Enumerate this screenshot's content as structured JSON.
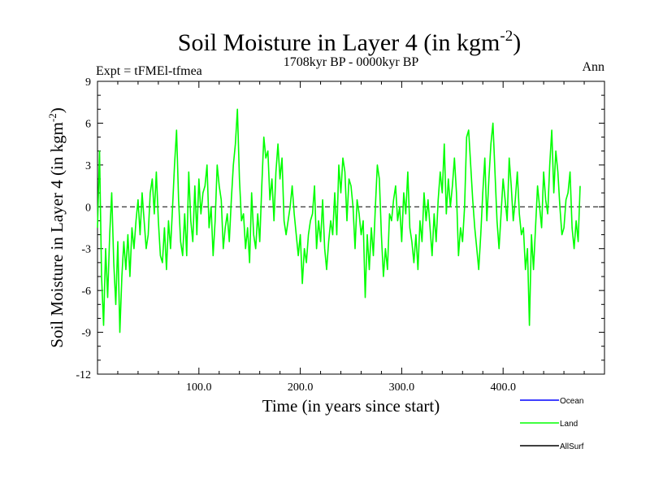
{
  "chart_data": {
    "type": "line",
    "title": "Soil Moisture in Layer 4 (in kgm",
    "title_sup": "-2",
    "title_close": ")",
    "subtitle": "1708kyr BP - 0000kyr BP",
    "left_label": "Expt = tFMEl-tfmea",
    "right_label": "Ann",
    "xlabel": "Time (in years since start)",
    "ylabel": "Soil Moisture in Layer 4 (in kgm",
    "ylabel_sup": "-2",
    "ylabel_close": ")",
    "xlim": [
      0,
      500
    ],
    "ylim": [
      -12,
      9
    ],
    "x_ticks": [
      100,
      200,
      300,
      400
    ],
    "x_tick_labels": [
      "100.0",
      "200.0",
      "300.0",
      "400.0"
    ],
    "y_ticks": [
      -12,
      -9,
      -6,
      -3,
      0,
      3,
      6,
      9
    ],
    "y_tick_labels": [
      "-12",
      "-9",
      "-6",
      "-3",
      "0",
      "3",
      "6",
      "9"
    ],
    "zero_line": 0,
    "legend": [
      {
        "name": "Ocean",
        "color": "#0000ff"
      },
      {
        "name": "Land",
        "color": "#00ff00"
      },
      {
        "name": "AllSurf",
        "color": "#000000"
      }
    ],
    "series": [
      {
        "name": "Land",
        "color": "#00ff00",
        "x_start": 0,
        "x_step": 2,
        "values": [
          -1.5,
          4.0,
          -5.0,
          -8.5,
          -3.0,
          -6.5,
          -2.0,
          1.0,
          -4.0,
          -7.0,
          -2.5,
          -9.0,
          -5.0,
          -2.5,
          -4.5,
          -2.0,
          -5.0,
          -1.5,
          -3.0,
          -1.0,
          0.5,
          -2.0,
          1.0,
          -1.0,
          -3.0,
          -2.0,
          1.0,
          2.0,
          -0.5,
          2.5,
          -1.0,
          -3.5,
          -4.0,
          -1.5,
          -4.5,
          -1.0,
          -3.0,
          0.0,
          3.0,
          5.5,
          0.5,
          -2.5,
          -3.5,
          -0.5,
          -3.5,
          2.5,
          -1.0,
          -2.5,
          1.5,
          -2.0,
          2.0,
          -0.5,
          1.0,
          1.5,
          3.0,
          -1.5,
          0.0,
          -3.5,
          -1.0,
          3.0,
          1.5,
          0.5,
          -3.0,
          -1.5,
          -0.5,
          -2.5,
          0.5,
          3.0,
          4.5,
          7.0,
          2.0,
          -1.0,
          -0.5,
          -3.0,
          -1.5,
          -4.0,
          1.0,
          -2.0,
          -3.0,
          -0.5,
          -2.5,
          1.5,
          5.0,
          3.5,
          4.0,
          0.5,
          2.0,
          -1.0,
          2.5,
          4.5,
          2.0,
          3.5,
          -1.0,
          -2.0,
          -1.0,
          0.0,
          1.5,
          -0.5,
          -2.0,
          -3.5,
          -2.0,
          -5.5,
          -3.0,
          -4.0,
          -2.0,
          -1.0,
          -0.5,
          1.5,
          -3.0,
          -1.0,
          -2.5,
          0.5,
          -3.0,
          -4.5,
          -2.5,
          -1.0,
          -2.0,
          1.0,
          -2.0,
          3.0,
          1.0,
          3.5,
          2.5,
          -1.0,
          2.0,
          1.5,
          0.0,
          -3.0,
          0.5,
          -0.5,
          -2.0,
          -1.0,
          -6.5,
          -2.0,
          -4.5,
          -1.5,
          -3.5,
          0.0,
          3.0,
          2.0,
          -2.0,
          -5.0,
          -3.0,
          -4.5,
          -0.5,
          -1.0,
          0.5,
          1.5,
          -1.0,
          0.0,
          -2.5,
          1.0,
          -0.5,
          2.5,
          -1.5,
          -2.5,
          -4.0,
          -2.0,
          -4.5,
          -1.0,
          -2.5,
          1.0,
          -1.0,
          0.5,
          -1.5,
          -3.5,
          -0.5,
          -2.5,
          0.5,
          2.5,
          1.0,
          4.5,
          -0.5,
          2.0,
          0.0,
          1.5,
          3.5,
          1.0,
          -3.5,
          -1.5,
          -2.5,
          0.0,
          5.0,
          5.5,
          3.0,
          0.5,
          -1.5,
          -3.0,
          -4.5,
          -2.0,
          1.0,
          3.5,
          -1.0,
          2.0,
          4.5,
          6.0,
          2.5,
          -1.0,
          -3.0,
          -0.5,
          2.0,
          0.5,
          -1.0,
          3.5,
          1.5,
          -1.0,
          0.5,
          2.5,
          -0.5,
          -2.0,
          -1.5,
          -4.5,
          -3.0,
          -8.5,
          -2.0,
          -4.5,
          -1.5,
          1.5,
          0.0,
          -1.5,
          2.5,
          0.5,
          -0.5,
          3.0,
          5.5,
          1.0,
          4.0,
          2.5,
          0.0,
          -2.0,
          -1.5,
          0.5,
          1.0,
          2.5,
          -1.5,
          -3.0,
          -1.0,
          -2.5,
          1.5
        ]
      }
    ]
  }
}
